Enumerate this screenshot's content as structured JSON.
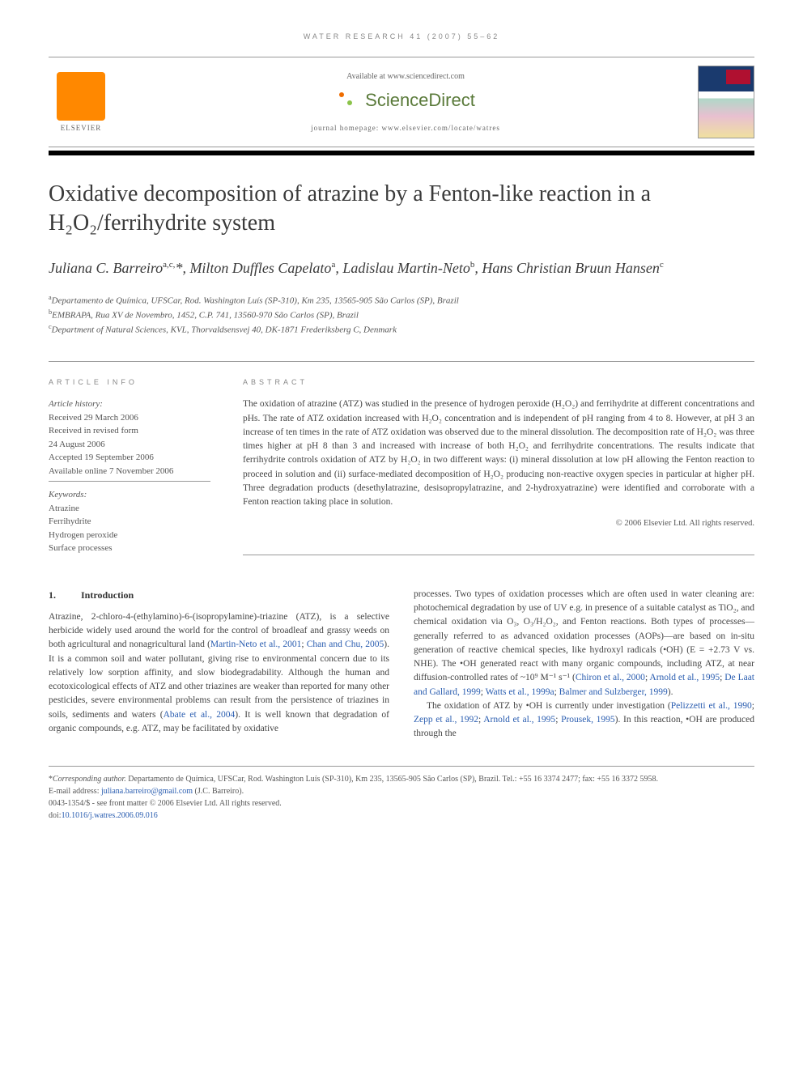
{
  "runningHeader": "WATER RESEARCH 41 (2007) 55–62",
  "banner": {
    "availableAt": "Available at www.sciencedirect.com",
    "sdName": "ScienceDirect",
    "homepage": "journal homepage: www.elsevier.com/locate/watres",
    "elsevierLabel": "ELSEVIER"
  },
  "title": "Oxidative decomposition of atrazine by a Fenton-like reaction in a H₂O₂/ferrihydrite system",
  "authorsHtml": "Juliana C. Barreiro",
  "authorsSup1": "a,c,",
  "authorsStar": "*",
  "author2": ", Milton Duffles Capelato",
  "authorsSup2": "a",
  "author3": ", Ladislau Martin-Neto",
  "authorsSup3": "b",
  "author4": ", Hans Christian Bruun Hansen",
  "authorsSup4": "c",
  "affiliations": {
    "a": "Departamento de Química, UFSCar, Rod. Washington Luís (SP-310), Km 235, 13565-905 São Carlos (SP), Brazil",
    "b": "EMBRAPA, Rua XV de Novembro, 1452, C.P. 741, 13560-970 São Carlos (SP), Brazil",
    "c": "Department of Natural Sciences, KVL, Thorvaldsensvej 40, DK-1871 Frederiksberg C, Denmark"
  },
  "infoLabel": "ARTICLE INFO",
  "abstractLabel": "ABSTRACT",
  "history": {
    "label": "Article history:",
    "received": "Received 29 March 2006",
    "revisedLabel": "Received in revised form",
    "revisedDate": "24 August 2006",
    "accepted": "Accepted 19 September 2006",
    "online": "Available online 7 November 2006"
  },
  "keywords": {
    "label": "Keywords:",
    "k1": "Atrazine",
    "k2": "Ferrihydrite",
    "k3": "Hydrogen peroxide",
    "k4": "Surface processes"
  },
  "abstractText": "The oxidation of atrazine (ATZ) was studied in the presence of hydrogen peroxide (H₂O₂) and ferrihydrite at different concentrations and pHs. The rate of ATZ oxidation increased with H₂O₂ concentration and is independent of pH ranging from 4 to 8. However, at pH 3 an increase of ten times in the rate of ATZ oxidation was observed due to the mineral dissolution. The decomposition rate of H₂O₂ was three times higher at pH 8 than 3 and increased with increase of both H₂O₂ and ferrihydrite concentrations. The results indicate that ferrihydrite controls oxidation of ATZ by H₂O₂ in two different ways: (i) mineral dissolution at low pH allowing the Fenton reaction to proceed in solution and (ii) surface-mediated decomposition of H₂O₂ producing non-reactive oxygen species in particular at higher pH. Three degradation products (desethylatrazine, desisopropylatrazine, and 2-hydroxyatrazine) were identified and corroborate with a Fenton reaction taking place in solution.",
  "copyright": "© 2006 Elsevier Ltd. All rights reserved.",
  "intro": {
    "num": "1.",
    "heading": "Introduction",
    "para1a": "Atrazine, 2-chloro-4-(ethylamino)-6-(isopropylamine)-triazine (ATZ), is a selective herbicide widely used around the world for the control of broadleaf and grassy weeds on both agricultural and nonagricultural land (",
    "ref1": "Martin-Neto et al., 2001",
    "para1b": "; ",
    "ref2": "Chan and Chu, 2005",
    "para1c": "). It is a common soil and water pollutant, giving rise to environmental concern due to its relatively low sorption affinity, and slow biodegradability. Although the human and ecotoxicological effects of ATZ and other triazines are weaker than reported for many other pesticides, severe environmental problems can result from the persistence of triazines in soils, sediments and waters (",
    "ref3": "Abate et al., 2004",
    "para1d": "). It is well known that degradation of organic compounds, e.g. ATZ, may be facilitated by oxidative",
    "para2a": "processes. Two types of oxidation processes which are often used in water cleaning are: photochemical degradation by use of UV e.g. in presence of a suitable catalyst as TiO₂, and chemical oxidation via O₃, O₃/H₂O₂, and Fenton reactions. Both types of processes—generally referred to as advanced oxidation processes (AOPs)—are based on in-situ generation of reactive chemical species, like hydroxyl radicals (•OH) (E = +2.73 V vs. NHE). The •OH generated react with many organic compounds, including ATZ, at near diffusion-controlled rates of ~10⁹ M⁻¹ s⁻¹ (",
    "ref4": "Chiron et al., 2000",
    "para2b": "; ",
    "ref5": "Arnold et al., 1995",
    "para2c": "; ",
    "ref6": "De Laat and Gallard, 1999",
    "para2d": "; ",
    "ref7": "Watts et al., 1999a",
    "para2e": "; ",
    "ref8": "Balmer and Sulzberger, 1999",
    "para2f": ").",
    "para3a": "The oxidation of ATZ by •OH is currently under investigation (",
    "ref9": "Pelizzetti et al., 1990",
    "para3b": "; ",
    "ref10": "Zepp et al., 1992",
    "para3c": "; ",
    "ref11": "Arnold et al., 1995",
    "para3d": "; ",
    "ref12": "Prousek, 1995",
    "para3e": "). In this reaction, •OH are produced through the"
  },
  "footnote": {
    "corrStar": "*",
    "corrLabel": "Corresponding author.",
    "corrAddr": " Departamento de Química, UFSCar, Rod. Washington Luís (SP-310), Km 235, 13565-905 São Carlos (SP), Brazil. Tel.: +55 16 3374 2477; fax: +55 16 3372 5958.",
    "emailLabel": "E-mail address: ",
    "email": "juliana.barreiro@gmail.com",
    "emailWho": " (J.C. Barreiro).",
    "issn": "0043-1354/$ - see front matter © 2006 Elsevier Ltd. All rights reserved.",
    "doiLabel": "doi:",
    "doi": "10.1016/j.watres.2006.09.016"
  },
  "colors": {
    "text": "#3a3a3a",
    "muted": "#888888",
    "link": "#2a5db0",
    "rule": "#999999",
    "elsevierOrange": "#ff8800",
    "sdGreen": "#5a7a3a"
  },
  "fontsizes": {
    "title": 28,
    "authors": 18,
    "body": 11.5,
    "small": 10,
    "label": 9
  }
}
